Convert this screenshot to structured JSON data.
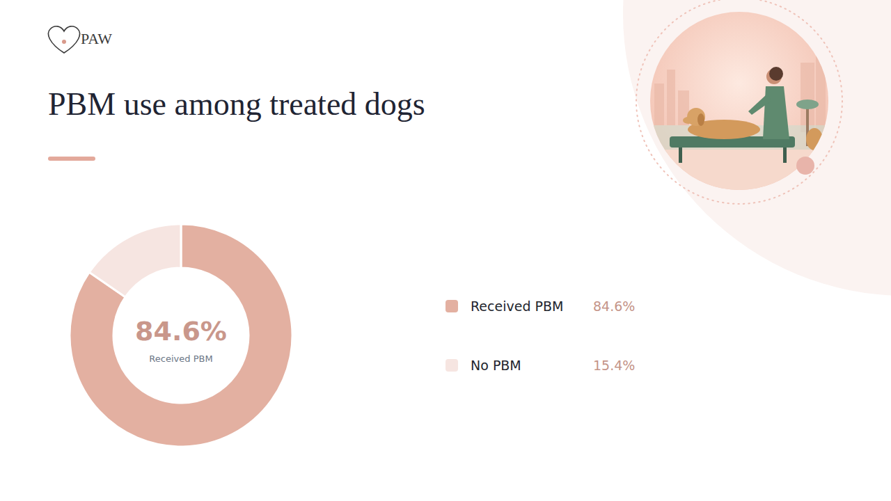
{
  "logo": "PAW",
  "chart_data": {
    "type": "pie",
    "title": "PBM use among treated dogs",
    "categories": [
      "Received PBM",
      "No PBM"
    ],
    "values": [
      84.6,
      15.4
    ],
    "value_labels": [
      "84.6%",
      "15.4%"
    ],
    "colors": [
      "#e3b0a1",
      "#f6e5e1"
    ],
    "annotations": [
      {
        "text": "84.6%"
      },
      {
        "text": "Received PBM"
      }
    ],
    "legend": "right"
  }
}
